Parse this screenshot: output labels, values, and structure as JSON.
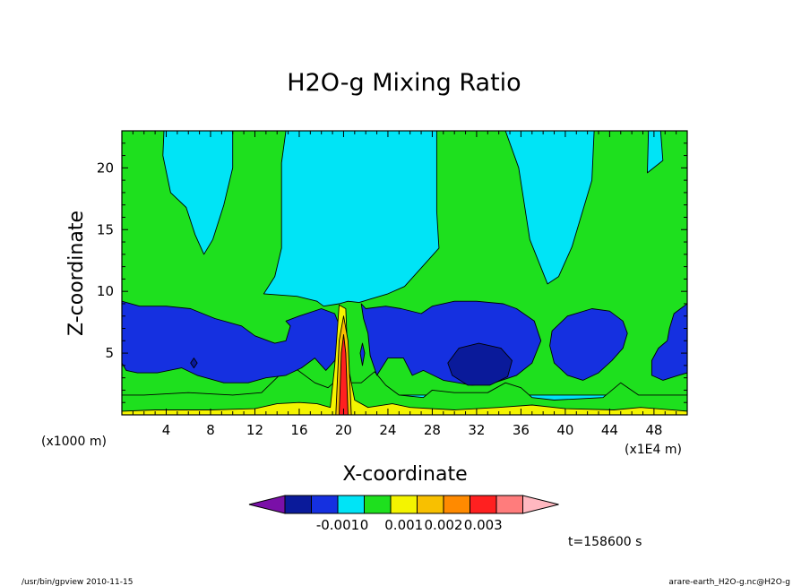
{
  "chart_data": {
    "type": "heatmap",
    "title": "H2O-g Mixing Ratio",
    "xlabel": "X-coordinate",
    "ylabel": "Z-coordinate",
    "x_unit_label": "(x1E4 m)",
    "y_unit_label": "(x1000 m)",
    "xlim": [
      0,
      51
    ],
    "ylim": [
      0,
      23
    ],
    "x_ticks": [
      4,
      8,
      12,
      16,
      20,
      24,
      28,
      32,
      36,
      40,
      44,
      48
    ],
    "y_ticks": [
      5,
      10,
      15,
      20
    ],
    "grid": false,
    "colorbar": {
      "levels": [
        {
          "color": "#7a10a8"
        },
        {
          "color": "#0a1a9a"
        },
        {
          "color": "#1530e0"
        },
        {
          "color": "#00e4f6"
        },
        {
          "color": "#1ee01e"
        },
        {
          "color": "#f4f400"
        },
        {
          "color": "#f8c000"
        },
        {
          "color": "#ff8a00"
        },
        {
          "color": "#ff2020"
        },
        {
          "color": "#ff7c7c"
        },
        {
          "color": "#ffb8c0"
        }
      ],
      "labels": [
        "-0.001",
        "0",
        "0.001",
        "0.002",
        "0.003"
      ]
    },
    "regions": [
      {
        "level": 3,
        "polygon": [
          [
            0,
            23
          ],
          [
            51,
            23
          ],
          [
            51,
            0
          ],
          [
            0,
            0
          ]
        ]
      },
      {
        "level": 4,
        "polygon": [
          [
            2.6,
            23
          ],
          [
            3.8,
            23
          ],
          [
            3.7,
            21
          ],
          [
            4.4,
            18
          ],
          [
            5.8,
            16.8
          ],
          [
            6.6,
            14.6
          ],
          [
            7.4,
            13
          ],
          [
            8.2,
            14.2
          ],
          [
            9.2,
            17
          ],
          [
            10,
            20
          ],
          [
            10,
            23
          ],
          [
            14.8,
            23
          ],
          [
            14.4,
            20.4
          ],
          [
            14.4,
            13.5
          ],
          [
            13.8,
            11.2
          ],
          [
            12.8,
            9.8
          ],
          [
            15.8,
            9.6
          ],
          [
            17.6,
            9.2
          ],
          [
            18.2,
            8.8
          ],
          [
            19.6,
            9
          ],
          [
            20.4,
            9.2
          ],
          [
            21.4,
            9.1
          ],
          [
            22.5,
            9.4
          ],
          [
            24,
            9.8
          ],
          [
            25.5,
            10.4
          ],
          [
            26.9,
            11.8
          ],
          [
            28.6,
            13.5
          ],
          [
            28.4,
            16.5
          ],
          [
            28.4,
            23
          ],
          [
            34.6,
            23
          ],
          [
            35.8,
            20
          ],
          [
            36.8,
            14.2
          ],
          [
            38.4,
            10.6
          ],
          [
            39.4,
            11.2
          ],
          [
            40.6,
            13.6
          ],
          [
            41.4,
            16
          ],
          [
            42.4,
            19
          ],
          [
            42.6,
            23
          ],
          [
            47.5,
            23
          ],
          [
            47.4,
            19.6
          ],
          [
            48.8,
            20.6
          ],
          [
            48.6,
            23
          ],
          [
            51,
            23
          ],
          [
            51,
            1.6
          ],
          [
            0,
            1.6
          ],
          [
            0,
            3.2
          ],
          [
            0,
            23
          ]
        ]
      },
      {
        "level": 4,
        "polygon": [
          [
            0,
            0
          ],
          [
            51,
            0
          ],
          [
            51,
            1.6
          ],
          [
            46.6,
            1.6
          ],
          [
            45,
            2.6
          ],
          [
            43.4,
            1.4
          ],
          [
            39,
            1.2
          ],
          [
            37,
            1.4
          ],
          [
            36,
            2.2
          ],
          [
            34.6,
            2.6
          ],
          [
            33,
            1.8
          ],
          [
            30,
            1.8
          ],
          [
            28,
            2
          ],
          [
            27.2,
            1.4
          ],
          [
            25,
            1.6
          ],
          [
            23.8,
            2.4
          ],
          [
            22.8,
            3.5
          ],
          [
            21.6,
            2.6
          ],
          [
            20.6,
            2.6
          ],
          [
            19.6,
            3
          ],
          [
            18.6,
            2.2
          ],
          [
            17.4,
            2.6
          ],
          [
            15.6,
            3.8
          ],
          [
            14.2,
            3.2
          ],
          [
            12.6,
            1.8
          ],
          [
            10,
            1.6
          ],
          [
            6,
            1.8
          ],
          [
            2,
            1.6
          ],
          [
            0,
            1.6
          ],
          [
            0,
            0
          ]
        ]
      },
      {
        "level": 2,
        "polygon": [
          [
            0,
            9.2
          ],
          [
            1.6,
            8.8
          ],
          [
            4,
            8.8
          ],
          [
            6.2,
            8.6
          ],
          [
            8.4,
            7.8
          ],
          [
            10.8,
            7.2
          ],
          [
            12,
            6.4
          ],
          [
            13.8,
            5.8
          ],
          [
            14.8,
            6
          ],
          [
            15.2,
            7.2
          ],
          [
            14.8,
            7.6
          ],
          [
            16,
            8
          ],
          [
            18,
            8.6
          ],
          [
            19.2,
            8.2
          ],
          [
            19.8,
            6.8
          ],
          [
            19.2,
            4.4
          ],
          [
            18.4,
            3.6
          ],
          [
            17.4,
            4.6
          ],
          [
            16.2,
            3.8
          ],
          [
            14.8,
            3.2
          ],
          [
            13,
            3
          ],
          [
            11.4,
            2.6
          ],
          [
            9.2,
            2.6
          ],
          [
            6.8,
            3.2
          ],
          [
            5.4,
            3.8
          ],
          [
            3.2,
            3.4
          ],
          [
            1.4,
            3.4
          ],
          [
            0.4,
            3.6
          ],
          [
            0,
            4.2
          ]
        ]
      },
      {
        "level": 2,
        "polygon": [
          [
            21.6,
            9
          ],
          [
            22,
            8.6
          ],
          [
            23.8,
            8.8
          ],
          [
            25.2,
            8.6
          ],
          [
            27,
            8.2
          ],
          [
            28,
            8.8
          ],
          [
            30,
            9.2
          ],
          [
            32,
            9.2
          ],
          [
            34.4,
            9
          ],
          [
            35.6,
            8.6
          ],
          [
            37.2,
            7.6
          ],
          [
            37.8,
            6
          ],
          [
            37,
            4.2
          ],
          [
            35.6,
            3.2
          ],
          [
            33.6,
            2.6
          ],
          [
            31.6,
            2.4
          ],
          [
            29,
            2.8
          ],
          [
            27.2,
            3.6
          ],
          [
            26.2,
            3.2
          ],
          [
            25.4,
            4.6
          ],
          [
            24,
            4.6
          ],
          [
            23,
            3.2
          ],
          [
            22.4,
            4.8
          ],
          [
            22.2,
            6.6
          ],
          [
            21.8,
            7.8
          ]
        ]
      },
      {
        "level": 2,
        "polygon": [
          [
            38.8,
            6.8
          ],
          [
            40.2,
            8
          ],
          [
            42.4,
            8.6
          ],
          [
            44,
            8.4
          ],
          [
            45.2,
            7.6
          ],
          [
            45.6,
            6.6
          ],
          [
            45.2,
            5.4
          ],
          [
            44.2,
            4.4
          ],
          [
            43,
            3.4
          ],
          [
            41.6,
            2.8
          ],
          [
            40.2,
            3.2
          ],
          [
            39,
            4.2
          ],
          [
            38.6,
            5.6
          ]
        ]
      },
      {
        "level": 2,
        "polygon": [
          [
            51,
            9
          ],
          [
            49.8,
            8.2
          ],
          [
            49.4,
            7
          ],
          [
            49.2,
            6
          ],
          [
            48.4,
            5.4
          ],
          [
            47.8,
            4.4
          ],
          [
            47.8,
            3.2
          ],
          [
            48.8,
            2.8
          ],
          [
            50.2,
            3.2
          ],
          [
            51,
            3.4
          ]
        ]
      },
      {
        "level": 2,
        "polygon": [
          [
            21.5,
            5
          ],
          [
            21.7,
            4
          ],
          [
            21.9,
            5
          ],
          [
            21.7,
            5.8
          ]
        ]
      },
      {
        "level": 1,
        "polygon": [
          [
            29.4,
            4.2
          ],
          [
            30.4,
            5.4
          ],
          [
            32.2,
            5.8
          ],
          [
            34.2,
            5.4
          ],
          [
            35.2,
            4.4
          ],
          [
            34.8,
            3.1
          ],
          [
            33.2,
            2.4
          ],
          [
            31.2,
            2.4
          ],
          [
            29.8,
            3.2
          ]
        ]
      },
      {
        "level": 1,
        "polygon": [
          [
            6.2,
            4.2
          ],
          [
            6.5,
            3.8
          ],
          [
            6.8,
            4.2
          ],
          [
            6.5,
            4.6
          ]
        ]
      },
      {
        "level": 5,
        "polygon": [
          [
            0,
            0
          ],
          [
            51,
            0
          ],
          [
            51,
            0.3
          ],
          [
            46.8,
            0.6
          ],
          [
            44.4,
            0.4
          ],
          [
            40,
            0.5
          ],
          [
            37,
            0.8
          ],
          [
            34,
            0.6
          ],
          [
            30,
            0.4
          ],
          [
            26,
            0.6
          ],
          [
            24.4,
            0.9
          ],
          [
            22.2,
            0.6
          ],
          [
            21,
            1.2
          ],
          [
            20.4,
            4
          ],
          [
            20.2,
            8.6
          ],
          [
            19.6,
            8.9
          ],
          [
            19.2,
            4
          ],
          [
            18.8,
            0.6
          ],
          [
            17.6,
            0.9
          ],
          [
            16,
            1
          ],
          [
            14,
            0.9
          ],
          [
            12,
            0.5
          ],
          [
            8,
            0.4
          ],
          [
            3,
            0.4
          ],
          [
            0,
            0.3
          ]
        ]
      },
      {
        "level": 6,
        "polygon": [
          [
            19.3,
            0
          ],
          [
            20.7,
            0
          ],
          [
            20.4,
            6
          ],
          [
            20,
            8
          ],
          [
            19.6,
            6
          ]
        ]
      },
      {
        "level": 8,
        "polygon": [
          [
            19.6,
            0
          ],
          [
            20.4,
            0
          ],
          [
            20.2,
            5
          ],
          [
            20,
            6.5
          ],
          [
            19.8,
            5
          ]
        ]
      }
    ]
  },
  "time_label": "t=158600 s",
  "footer_left": "/usr/bin/gpview   2010-11-15",
  "footer_right": "arare-earth_H2O-g.nc@H2O-g"
}
